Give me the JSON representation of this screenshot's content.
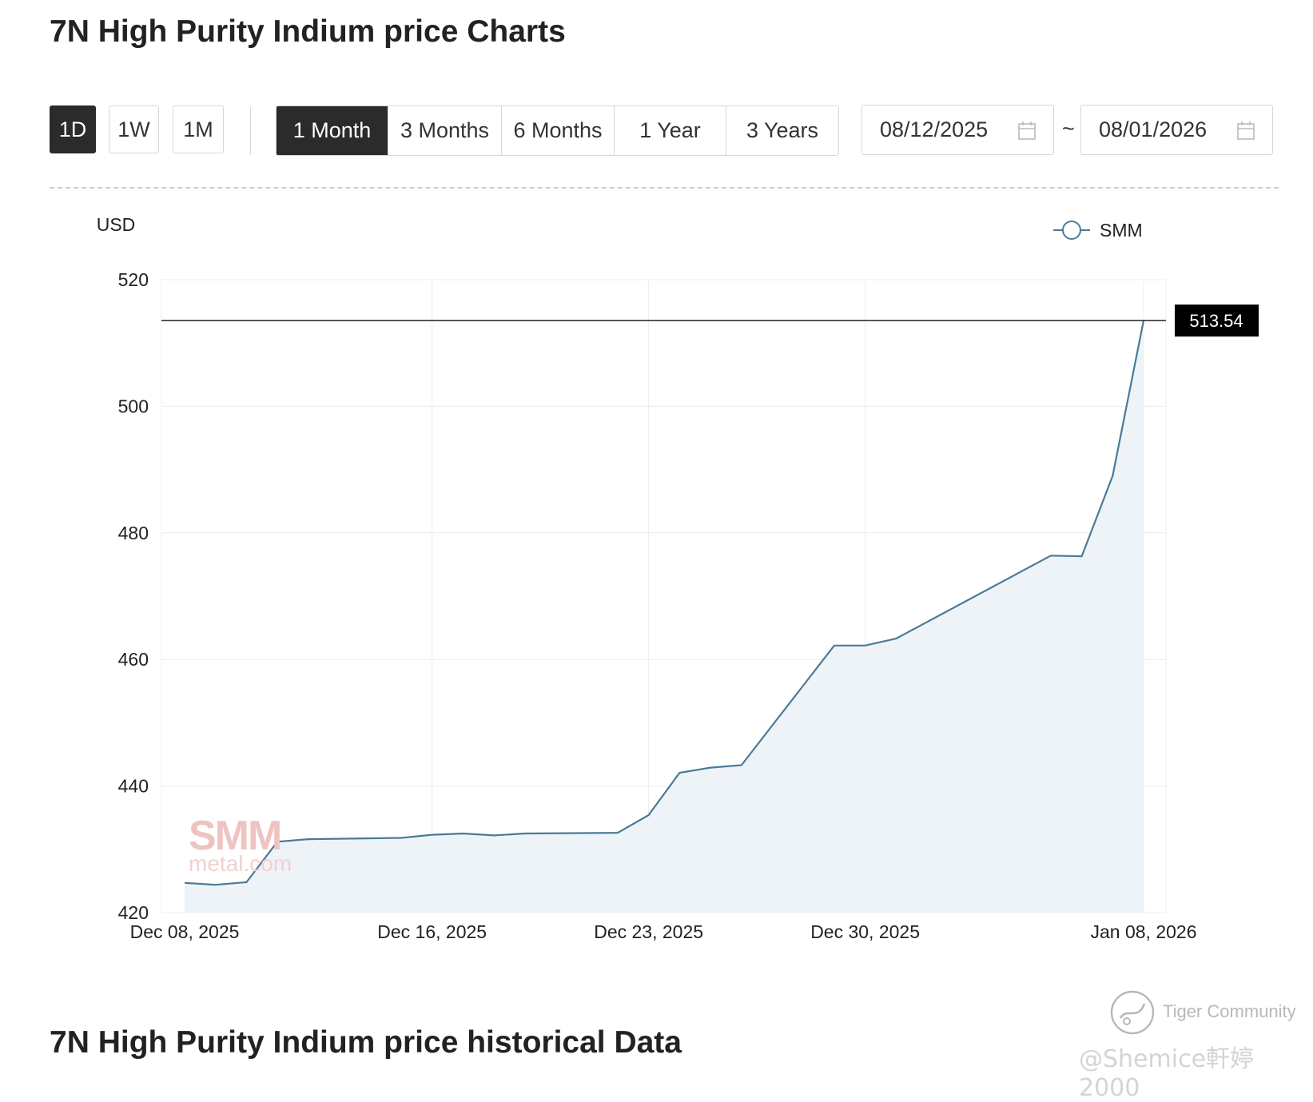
{
  "header": {
    "title": "7N High Purity Indium price Charts"
  },
  "interval_buttons": [
    "1D",
    "1W",
    "1M"
  ],
  "interval_active": "1D",
  "range_buttons": [
    "1 Month",
    "3 Months",
    "6 Months",
    "1 Year",
    "3 Years"
  ],
  "range_active": "1 Month",
  "date_range": {
    "start": "08/12/2025",
    "separator": "~",
    "end": "08/01/2026"
  },
  "colors": {
    "line": "#4a7a97",
    "area": "#eef3f8",
    "dark": "#2b2b2b"
  },
  "chart_data": {
    "type": "area",
    "ylabel": "USD",
    "ylim": [
      420,
      520
    ],
    "yticks": [
      420,
      440,
      460,
      480,
      500,
      520
    ],
    "xticks": [
      {
        "date": "2025-12-08",
        "label": "Dec 08, 2025"
      },
      {
        "date": "2025-12-16",
        "label": "Dec 16, 2025"
      },
      {
        "date": "2025-12-23",
        "label": "Dec 23, 2025"
      },
      {
        "date": "2025-12-30",
        "label": "Dec 30, 2025"
      },
      {
        "date": "2026-01-08",
        "label": "Jan 08, 2026"
      }
    ],
    "series": [
      {
        "name": "SMM",
        "points": [
          {
            "x": "2025-12-08",
            "y": 424.7
          },
          {
            "x": "2025-12-09",
            "y": 424.4
          },
          {
            "x": "2025-12-10",
            "y": 424.8
          },
          {
            "x": "2025-12-11",
            "y": 431.2
          },
          {
            "x": "2025-12-12",
            "y": 431.6
          },
          {
            "x": "2025-12-15",
            "y": 431.8
          },
          {
            "x": "2025-12-16",
            "y": 432.3
          },
          {
            "x": "2025-12-17",
            "y": 432.5
          },
          {
            "x": "2025-12-18",
            "y": 432.2
          },
          {
            "x": "2025-12-19",
            "y": 432.5
          },
          {
            "x": "2025-12-22",
            "y": 432.6
          },
          {
            "x": "2025-12-23",
            "y": 435.4
          },
          {
            "x": "2025-12-24",
            "y": 442.1
          },
          {
            "x": "2025-12-25",
            "y": 442.9
          },
          {
            "x": "2025-12-26",
            "y": 443.3
          },
          {
            "x": "2025-12-29",
            "y": 462.2
          },
          {
            "x": "2025-12-30",
            "y": 462.2
          },
          {
            "x": "2025-12-31",
            "y": 463.3
          },
          {
            "x": "2026-01-05",
            "y": 476.4
          },
          {
            "x": "2026-01-06",
            "y": 476.3
          },
          {
            "x": "2026-01-07",
            "y": 489.0
          },
          {
            "x": "2026-01-08",
            "y": 513.54
          }
        ]
      }
    ],
    "last_value_label": "513.54",
    "legend": "top-right",
    "grid": true
  },
  "watermarks": {
    "smm_logo": "SMM",
    "smm_site": "metal.com",
    "community": "Tiger Community",
    "user": "@Shemice軒婷 2000"
  },
  "section2": {
    "title": "7N High Purity Indium price historical Data"
  }
}
